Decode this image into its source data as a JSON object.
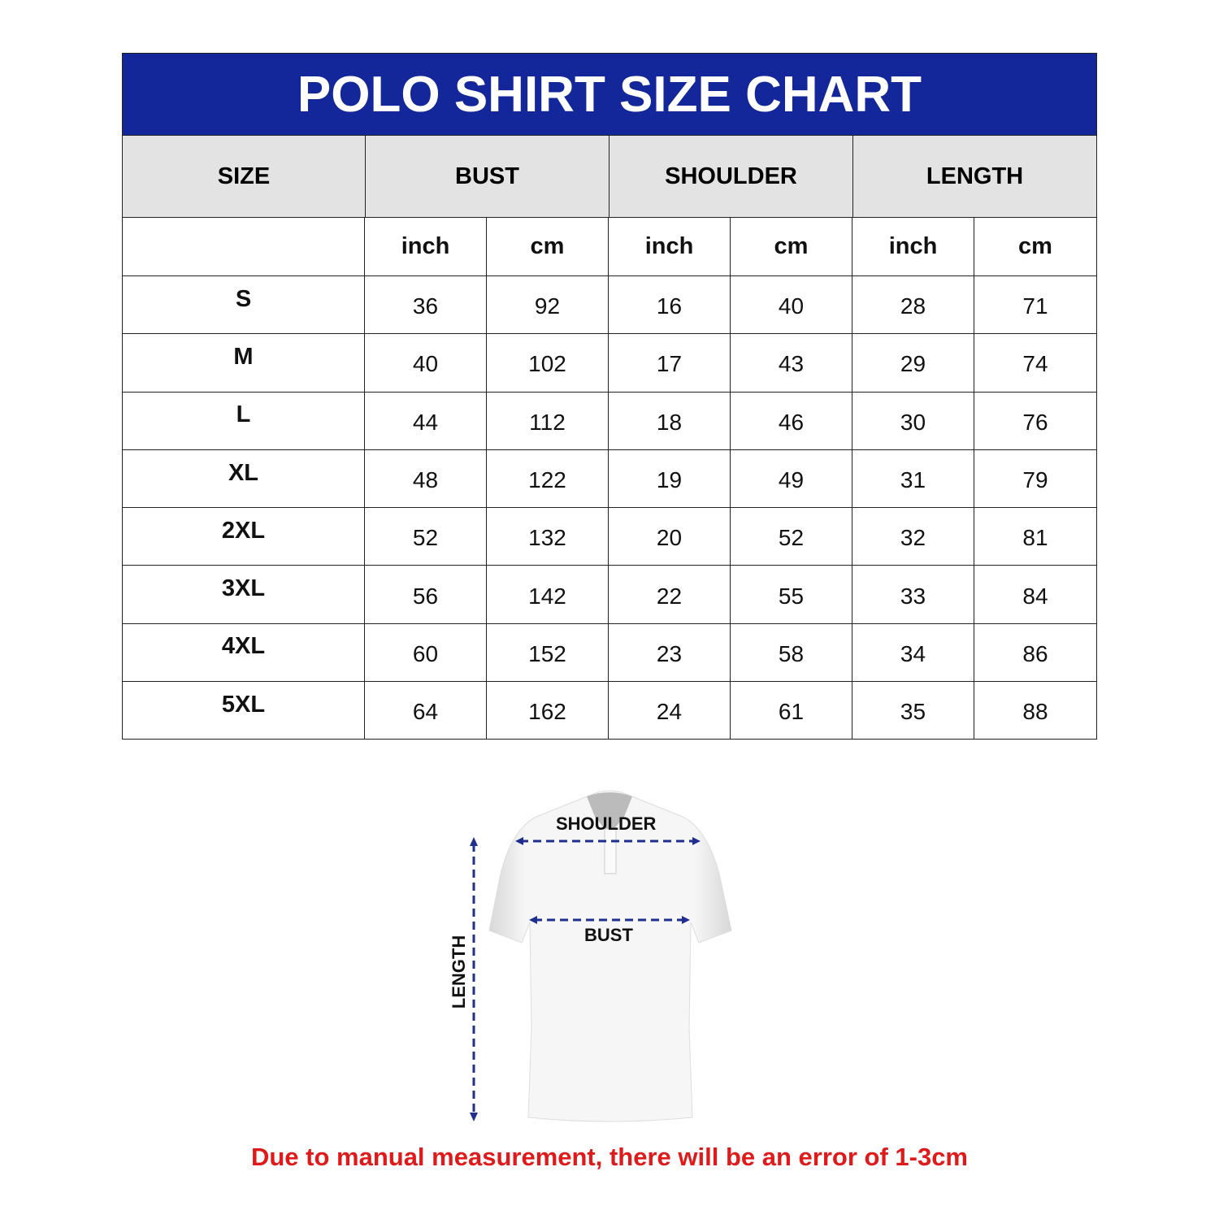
{
  "title": "POLO SHIRT SIZE CHART",
  "headers": [
    "SIZE",
    "BUST",
    "SHOULDER",
    "LENGTH"
  ],
  "units": [
    "",
    "inch",
    "cm",
    "inch",
    "cm",
    "inch",
    "cm"
  ],
  "rows": [
    [
      "S",
      "36",
      "92",
      "16",
      "40",
      "28",
      "71"
    ],
    [
      "M",
      "40",
      "102",
      "17",
      "43",
      "29",
      "74"
    ],
    [
      "L",
      "44",
      "112",
      "18",
      "46",
      "30",
      "76"
    ],
    [
      "XL",
      "48",
      "122",
      "19",
      "49",
      "31",
      "79"
    ],
    [
      "2XL",
      "52",
      "132",
      "20",
      "52",
      "32",
      "81"
    ],
    [
      "3XL",
      "56",
      "142",
      "22",
      "55",
      "33",
      "84"
    ],
    [
      "4XL",
      "60",
      "152",
      "23",
      "58",
      "34",
      "86"
    ],
    [
      "5XL",
      "64",
      "162",
      "24",
      "61",
      "35",
      "88"
    ]
  ],
  "diagram": {
    "shoulder": "SHOULDER",
    "bust": "BUST",
    "length": "LENGTH"
  },
  "note": "Due to manual measurement, there will be an error of 1-3cm",
  "colors": {
    "title_bg": "#13279a",
    "header_bg": "#e3e3e3",
    "note": "#e01a1a",
    "arrow": "#1f2f8f"
  }
}
